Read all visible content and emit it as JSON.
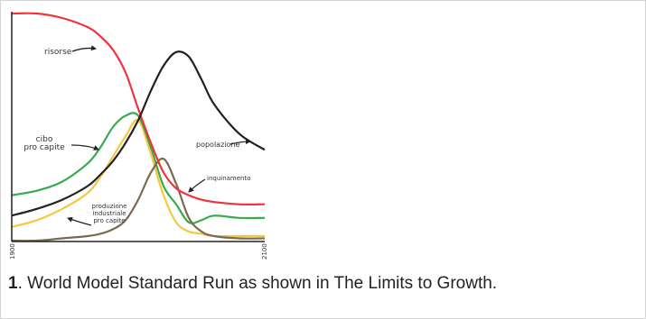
{
  "caption": {
    "number": "1",
    "text": ". World Model Standard Run as shown in The Limits to Growth."
  },
  "chart_data": {
    "type": "line",
    "xlim": [
      1900,
      2100
    ],
    "x_tick_labels": [
      "1900",
      "2100"
    ],
    "grid": false,
    "legend": "inline labels with arrows",
    "series": [
      {
        "name": "risorse",
        "color": "#f0323c",
        "x": [
          1900,
          1920,
          1940,
          1960,
          1970,
          1980,
          1990,
          2000,
          2010,
          2020,
          2030,
          2040,
          2050,
          2060,
          2080,
          2100
        ],
        "y": [
          1.0,
          1.0,
          0.98,
          0.94,
          0.9,
          0.84,
          0.74,
          0.58,
          0.43,
          0.3,
          0.23,
          0.2,
          0.18,
          0.17,
          0.16,
          0.16
        ]
      },
      {
        "name": "cibo pro capite",
        "color": "#3aaa4e",
        "x": [
          1900,
          1920,
          1940,
          1960,
          1970,
          1980,
          1990,
          2000,
          2010,
          2020,
          2030,
          2040,
          2050,
          2060,
          2080,
          2100
        ],
        "y": [
          0.2,
          0.22,
          0.26,
          0.34,
          0.41,
          0.5,
          0.55,
          0.55,
          0.41,
          0.24,
          0.16,
          0.08,
          0.09,
          0.11,
          0.1,
          0.1
        ]
      },
      {
        "name": "popolazione",
        "color": "#222222",
        "x": [
          1900,
          1920,
          1940,
          1960,
          1970,
          1980,
          1990,
          2000,
          2010,
          2020,
          2030,
          2040,
          2050,
          2060,
          2080,
          2100
        ],
        "y": [
          0.11,
          0.14,
          0.18,
          0.24,
          0.29,
          0.35,
          0.43,
          0.53,
          0.66,
          0.77,
          0.83,
          0.81,
          0.71,
          0.6,
          0.47,
          0.4
        ]
      },
      {
        "name": "produzione industriale pro capite",
        "color": "#f5c842",
        "x": [
          1900,
          1920,
          1940,
          1960,
          1970,
          1980,
          1990,
          2000,
          2010,
          2020,
          2030,
          2040,
          2050,
          2060,
          2080,
          2100
        ],
        "y": [
          0.06,
          0.09,
          0.14,
          0.21,
          0.28,
          0.37,
          0.46,
          0.53,
          0.38,
          0.2,
          0.08,
          0.04,
          0.03,
          0.02,
          0.02,
          0.02
        ]
      },
      {
        "name": "inquinamento",
        "color": "#7a6a4f",
        "x": [
          1900,
          1920,
          1940,
          1960,
          1970,
          1980,
          1990,
          2000,
          2010,
          2020,
          2030,
          2040,
          2050,
          2060,
          2080,
          2100
        ],
        "y": [
          0.0,
          0.0,
          0.01,
          0.02,
          0.03,
          0.05,
          0.09,
          0.18,
          0.3,
          0.36,
          0.25,
          0.1,
          0.04,
          0.02,
          0.01,
          0.01
        ]
      }
    ]
  }
}
